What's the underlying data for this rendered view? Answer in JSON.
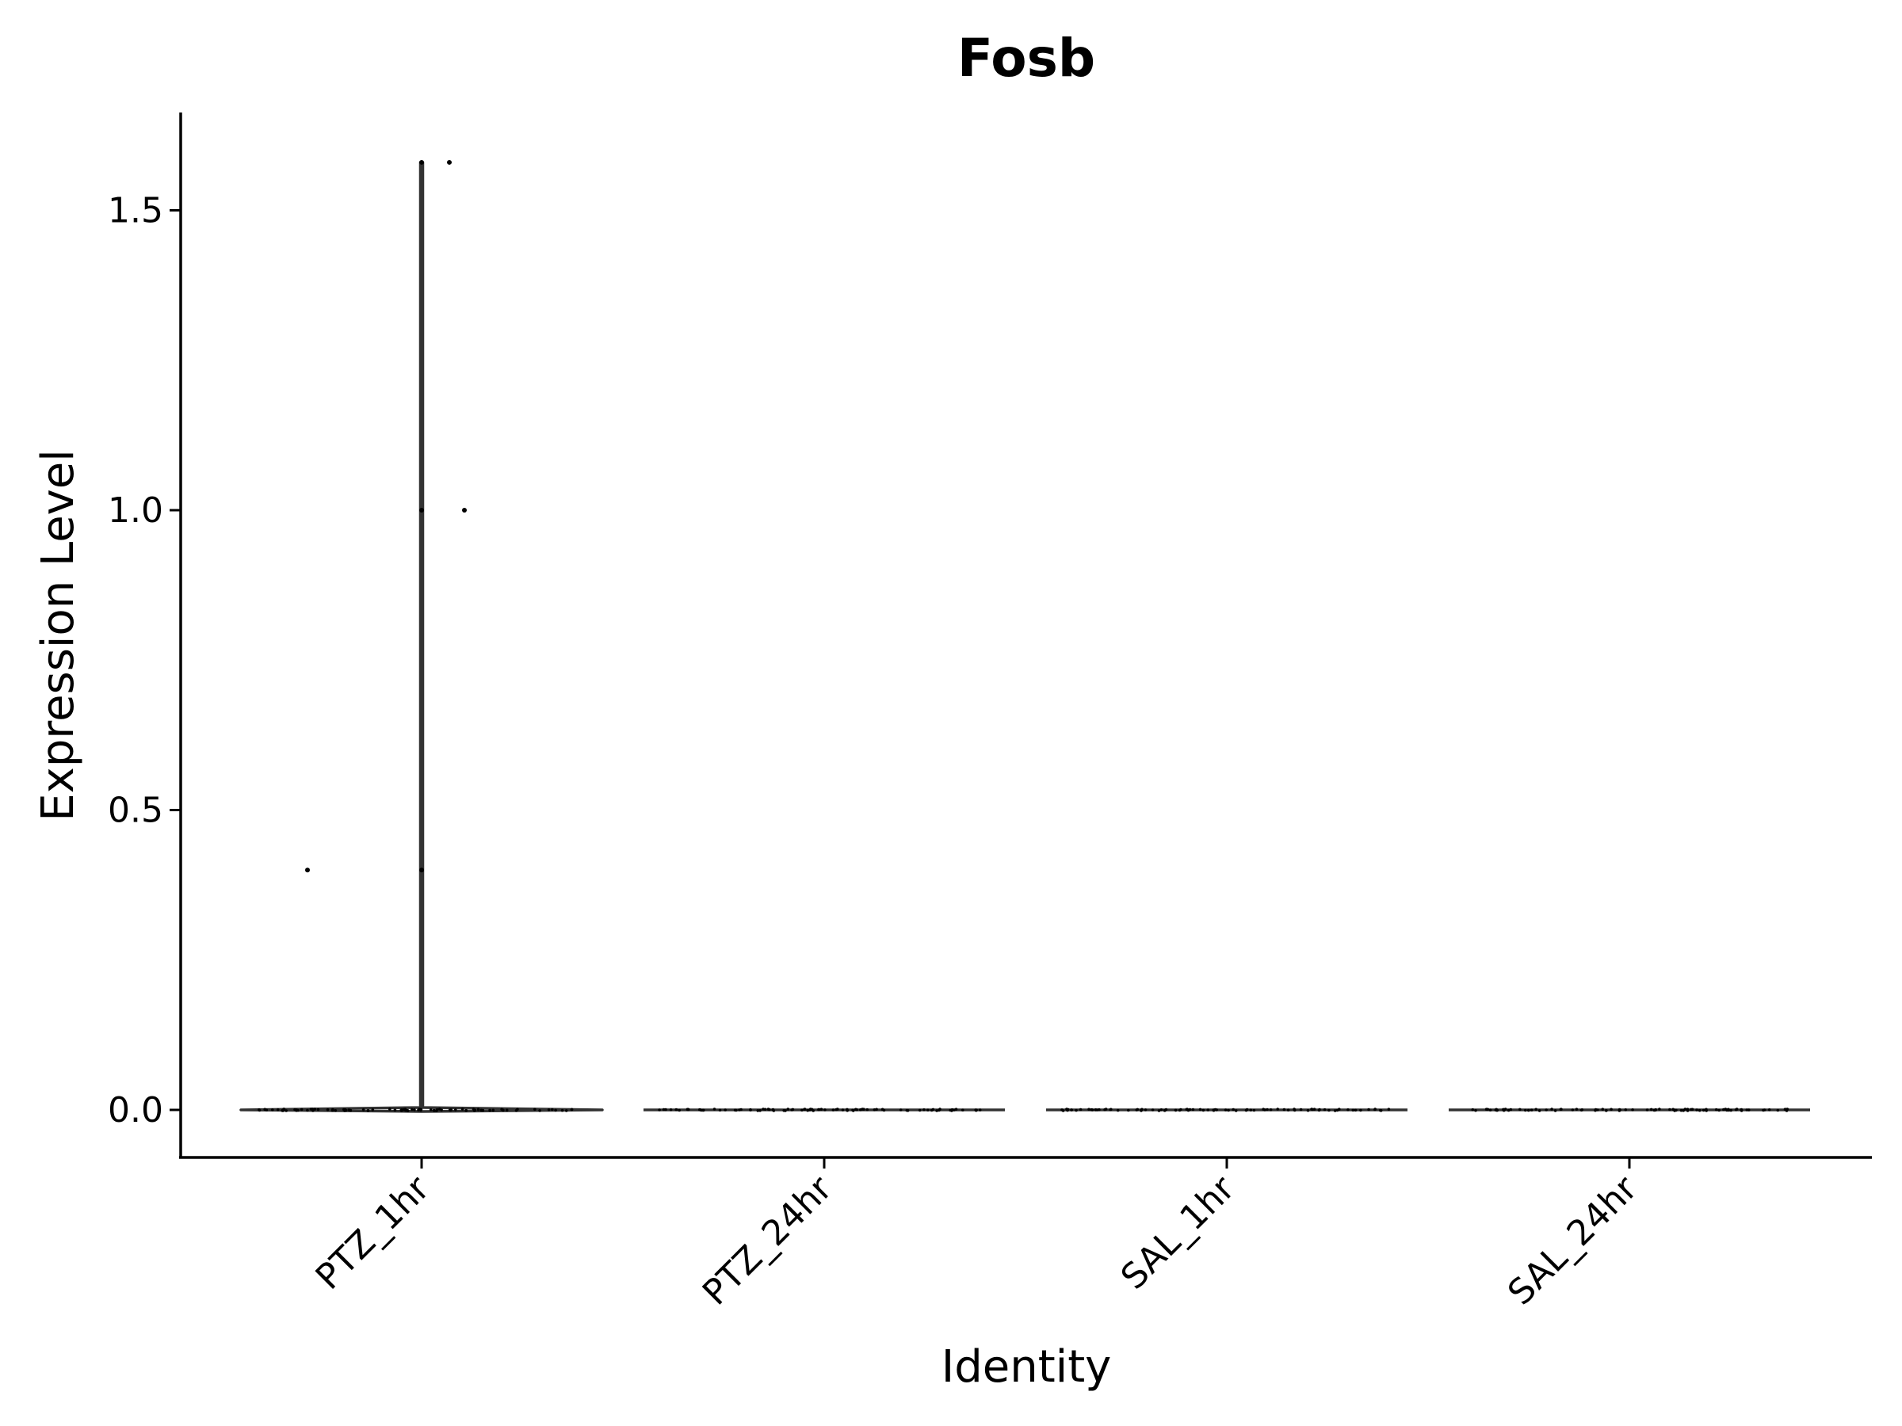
{
  "chart_data": {
    "type": "violin",
    "title": "Fosb",
    "xlabel": "Identity",
    "ylabel": "Expression Level",
    "categories": [
      "PTZ_1hr",
      "PTZ_24hr",
      "SAL_1hr",
      "SAL_24hr"
    ],
    "ylim": [
      -0.08,
      1.65
    ],
    "y_ticks": [
      0.0,
      0.5,
      1.0,
      1.5
    ],
    "y_tick_labels": [
      "0.0",
      "0.5",
      "1.0",
      "1.5"
    ],
    "grid": false,
    "legend": "none",
    "violin_color": "#333333",
    "point_color": "#000000",
    "nonzero_points": [
      {
        "category": "PTZ_1hr",
        "y": 1.58
      },
      {
        "category": "PTZ_1hr",
        "y": 1.58
      },
      {
        "category": "PTZ_1hr",
        "y": 1.0
      },
      {
        "category": "PTZ_1hr",
        "y": 1.0
      },
      {
        "category": "PTZ_1hr",
        "y": 0.4
      },
      {
        "category": "PTZ_1hr",
        "y": 0.4
      }
    ],
    "violin_max": [
      1.58,
      0.0,
      0.0,
      0.0
    ],
    "zero_value_cells": "most cells in all four groups are at 0.0"
  }
}
